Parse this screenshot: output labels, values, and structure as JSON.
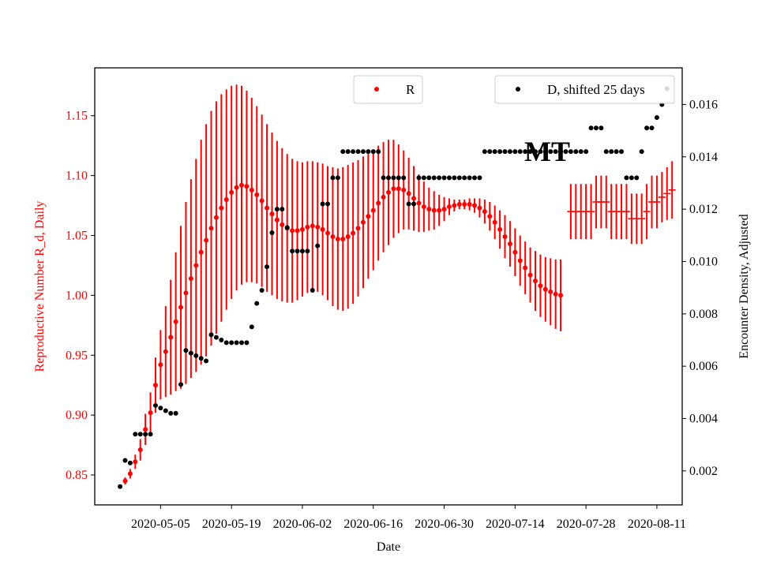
{
  "chart_data": {
    "type": "scatter",
    "title": "",
    "watermark": "MT",
    "xlabel": "Date",
    "ylabel_left": "Reproductive Number R_d, Daily",
    "ylabel_right": "Encounter Density, Adjusted",
    "colors": {
      "left_axis": "#ff0000",
      "right_axis": "#000000",
      "r_series": "#ff0000",
      "d_series": "#000000"
    },
    "x_ticks": [
      "2020-05-05",
      "2020-05-19",
      "2020-06-02",
      "2020-06-16",
      "2020-06-30",
      "2020-07-14",
      "2020-07-28",
      "2020-08-11"
    ],
    "left_ticks": [
      "0.85",
      "0.90",
      "0.95",
      "1.00",
      "1.05",
      "1.10",
      "1.15"
    ],
    "right_ticks": [
      "0.002",
      "0.004",
      "0.006",
      "0.008",
      "0.010",
      "0.012",
      "0.014",
      "0.016"
    ],
    "xlim": [
      "2020-04-22",
      "2020-08-16"
    ],
    "ylim_left": [
      0.825,
      1.19
    ],
    "ylim_right": [
      0.0007,
      0.0174
    ],
    "legend_r": {
      "label": "R",
      "placement": "top-center"
    },
    "legend_d": {
      "label": "D, shifted 25 days",
      "placement": "top-right"
    },
    "series": [
      {
        "name": "R",
        "axis": "left",
        "x": [
          "2020-04-28",
          "2020-04-29",
          "2020-04-30",
          "2020-05-01",
          "2020-05-02",
          "2020-05-03",
          "2020-05-04",
          "2020-05-05",
          "2020-05-06",
          "2020-05-07",
          "2020-05-08",
          "2020-05-09",
          "2020-05-10",
          "2020-05-11",
          "2020-05-12",
          "2020-05-13",
          "2020-05-14",
          "2020-05-15",
          "2020-05-16",
          "2020-05-17",
          "2020-05-18",
          "2020-05-19",
          "2020-05-20",
          "2020-05-21",
          "2020-05-22",
          "2020-05-23",
          "2020-05-24",
          "2020-05-25",
          "2020-05-26",
          "2020-05-27",
          "2020-05-28",
          "2020-05-29",
          "2020-05-30",
          "2020-05-31",
          "2020-06-01",
          "2020-06-02",
          "2020-06-03",
          "2020-06-04",
          "2020-06-05",
          "2020-06-06",
          "2020-06-07",
          "2020-06-08",
          "2020-06-09",
          "2020-06-10",
          "2020-06-11",
          "2020-06-12",
          "2020-06-13",
          "2020-06-14",
          "2020-06-15",
          "2020-06-16",
          "2020-06-17",
          "2020-06-18",
          "2020-06-19",
          "2020-06-20",
          "2020-06-21",
          "2020-06-22",
          "2020-06-23",
          "2020-06-24",
          "2020-06-25",
          "2020-06-26",
          "2020-06-27",
          "2020-06-28",
          "2020-06-29",
          "2020-06-30",
          "2020-07-01",
          "2020-07-02",
          "2020-07-03",
          "2020-07-04",
          "2020-07-05",
          "2020-07-06",
          "2020-07-07",
          "2020-07-08",
          "2020-07-09",
          "2020-07-10",
          "2020-07-11",
          "2020-07-12",
          "2020-07-13",
          "2020-07-14",
          "2020-07-15",
          "2020-07-16",
          "2020-07-17",
          "2020-07-18",
          "2020-07-19",
          "2020-07-20",
          "2020-07-21",
          "2020-07-22",
          "2020-07-23"
        ],
        "y": [
          0.845,
          0.851,
          0.861,
          0.871,
          0.888,
          0.902,
          0.925,
          0.942,
          0.953,
          0.965,
          0.978,
          0.99,
          1.002,
          1.014,
          1.025,
          1.036,
          1.046,
          1.056,
          1.065,
          1.073,
          1.08,
          1.086,
          1.09,
          1.092,
          1.091,
          1.088,
          1.084,
          1.079,
          1.073,
          1.068,
          1.063,
          1.059,
          1.056,
          1.054,
          1.054,
          1.055,
          1.057,
          1.058,
          1.057,
          1.055,
          1.052,
          1.049,
          1.047,
          1.047,
          1.049,
          1.052,
          1.056,
          1.061,
          1.066,
          1.071,
          1.077,
          1.082,
          1.086,
          1.089,
          1.089,
          1.088,
          1.085,
          1.081,
          1.077,
          1.074,
          1.072,
          1.071,
          1.071,
          1.072,
          1.074,
          1.075,
          1.076,
          1.076,
          1.076,
          1.075,
          1.073,
          1.07,
          1.066,
          1.061,
          1.055,
          1.049,
          1.043,
          1.036,
          1.029,
          1.023,
          1.017,
          1.012,
          1.008,
          1.005,
          1.003,
          1.001,
          1.0
        ],
        "err": [
          0.003,
          0.004,
          0.006,
          0.009,
          0.013,
          0.017,
          0.023,
          0.029,
          0.038,
          0.048,
          0.058,
          0.068,
          0.076,
          0.083,
          0.089,
          0.094,
          0.097,
          0.098,
          0.097,
          0.095,
          0.092,
          0.089,
          0.086,
          0.083,
          0.08,
          0.077,
          0.074,
          0.072,
          0.07,
          0.068,
          0.066,
          0.064,
          0.062,
          0.06,
          0.058,
          0.056,
          0.055,
          0.054,
          0.054,
          0.055,
          0.056,
          0.058,
          0.059,
          0.06,
          0.06,
          0.059,
          0.057,
          0.055,
          0.052,
          0.05,
          0.048,
          0.046,
          0.044,
          0.041,
          0.037,
          0.033,
          0.03,
          0.027,
          0.024,
          0.021,
          0.018,
          0.016,
          0.013,
          0.01,
          0.007,
          0.005,
          0.004,
          0.004,
          0.005,
          0.006,
          0.008,
          0.01,
          0.012,
          0.014,
          0.016,
          0.018,
          0.019,
          0.02,
          0.021,
          0.022,
          0.023,
          0.025,
          0.026,
          0.027,
          0.028,
          0.029,
          0.03
        ]
      },
      {
        "name": "R",
        "axis": "left",
        "style": "errorbar-flat",
        "x": [
          "2020-07-25",
          "2020-07-26",
          "2020-07-27",
          "2020-07-28",
          "2020-07-29",
          "2020-07-30",
          "2020-07-31",
          "2020-08-01",
          "2020-08-02",
          "2020-08-03",
          "2020-08-04",
          "2020-08-05",
          "2020-08-06",
          "2020-08-07",
          "2020-08-08",
          "2020-08-09",
          "2020-08-10",
          "2020-08-11",
          "2020-08-12",
          "2020-08-13",
          "2020-08-14"
        ],
        "y": [
          1.07,
          1.07,
          1.07,
          1.07,
          1.07,
          1.078,
          1.078,
          1.078,
          1.07,
          1.07,
          1.07,
          1.07,
          1.064,
          1.064,
          1.064,
          1.07,
          1.078,
          1.078,
          1.082,
          1.085,
          1.088
        ],
        "err": [
          0.023,
          0.023,
          0.023,
          0.023,
          0.023,
          0.022,
          0.022,
          0.022,
          0.023,
          0.023,
          0.023,
          0.023,
          0.021,
          0.021,
          0.021,
          0.023,
          0.022,
          0.022,
          0.021,
          0.022,
          0.024
        ]
      },
      {
        "name": "D, shifted 25 days",
        "axis": "right",
        "x": [
          "2020-04-27",
          "2020-04-28",
          "2020-04-29",
          "2020-04-30",
          "2020-05-01",
          "2020-05-02",
          "2020-05-03",
          "2020-05-04",
          "2020-05-05",
          "2020-05-06",
          "2020-05-07",
          "2020-05-08",
          "2020-05-09",
          "2020-05-10",
          "2020-05-11",
          "2020-05-12",
          "2020-05-13",
          "2020-05-14",
          "2020-05-15",
          "2020-05-16",
          "2020-05-17",
          "2020-05-18",
          "2020-05-19",
          "2020-05-20",
          "2020-05-21",
          "2020-05-22",
          "2020-05-23",
          "2020-05-24",
          "2020-05-25",
          "2020-05-26",
          "2020-05-27",
          "2020-05-28",
          "2020-05-29",
          "2020-05-30",
          "2020-05-31",
          "2020-06-01",
          "2020-06-02",
          "2020-06-03",
          "2020-06-04",
          "2020-06-05",
          "2020-06-06",
          "2020-06-07",
          "2020-06-08",
          "2020-06-09",
          "2020-06-10",
          "2020-06-11",
          "2020-06-12",
          "2020-06-13",
          "2020-06-14",
          "2020-06-15",
          "2020-06-16",
          "2020-06-17",
          "2020-06-18",
          "2020-06-19",
          "2020-06-20",
          "2020-06-21",
          "2020-06-22",
          "2020-06-23",
          "2020-06-24",
          "2020-06-25",
          "2020-06-26",
          "2020-06-27",
          "2020-06-28",
          "2020-06-29",
          "2020-06-30",
          "2020-07-01",
          "2020-07-02",
          "2020-07-03",
          "2020-07-04",
          "2020-07-05",
          "2020-07-06",
          "2020-07-07",
          "2020-07-08",
          "2020-07-09",
          "2020-07-10",
          "2020-07-11",
          "2020-07-12",
          "2020-07-13",
          "2020-07-14",
          "2020-07-15",
          "2020-07-16",
          "2020-07-17",
          "2020-07-18",
          "2020-07-19",
          "2020-07-20",
          "2020-07-21",
          "2020-07-22",
          "2020-07-23",
          "2020-07-24",
          "2020-07-25",
          "2020-07-26",
          "2020-07-27",
          "2020-07-28",
          "2020-07-29",
          "2020-07-30",
          "2020-07-31",
          "2020-08-01",
          "2020-08-02",
          "2020-08-03",
          "2020-08-04",
          "2020-08-05",
          "2020-08-06",
          "2020-08-07",
          "2020-08-08",
          "2020-08-09",
          "2020-08-10",
          "2020-08-11",
          "2020-08-12",
          "2020-08-13"
        ],
        "y": [
          0.0014,
          0.0024,
          0.0023,
          0.0034,
          0.0034,
          0.0034,
          0.0034,
          0.0045,
          0.0044,
          0.0043,
          0.0042,
          0.0042,
          0.0053,
          0.0066,
          0.0065,
          0.0064,
          0.0063,
          0.0062,
          0.0072,
          0.0071,
          0.007,
          0.0069,
          0.0069,
          0.0069,
          0.0069,
          0.0069,
          0.0075,
          0.0084,
          0.0089,
          0.0098,
          0.0111,
          0.012,
          0.012,
          0.0113,
          0.0104,
          0.0104,
          0.0104,
          0.0104,
          0.0089,
          0.0106,
          0.0122,
          0.0122,
          0.0132,
          0.0132,
          0.0142,
          0.0142,
          0.0142,
          0.0142,
          0.0142,
          0.0142,
          0.0142,
          0.0142,
          0.0132,
          0.0132,
          0.0132,
          0.0132,
          0.0132,
          0.0122,
          0.0122,
          0.0132,
          0.0132,
          0.0132,
          0.0132,
          0.0132,
          0.0132,
          0.0132,
          0.0132,
          0.0132,
          0.0132,
          0.0132,
          0.0132,
          0.0132,
          0.0142,
          0.0142,
          0.0142,
          0.0142,
          0.0142,
          0.0142,
          0.0142,
          0.0142,
          0.0142,
          0.0142,
          0.0142,
          0.0142,
          0.0142,
          0.0142,
          0.0142,
          0.0142,
          0.0142,
          0.0142,
          0.0142,
          0.0142,
          0.0142,
          0.0151,
          0.0151,
          0.0151,
          0.0142,
          0.0142,
          0.0142,
          0.0142,
          0.0132,
          0.0132,
          0.0132,
          0.0142,
          0.0151,
          0.0151,
          0.0155,
          0.016,
          0.0166
        ]
      }
    ]
  }
}
